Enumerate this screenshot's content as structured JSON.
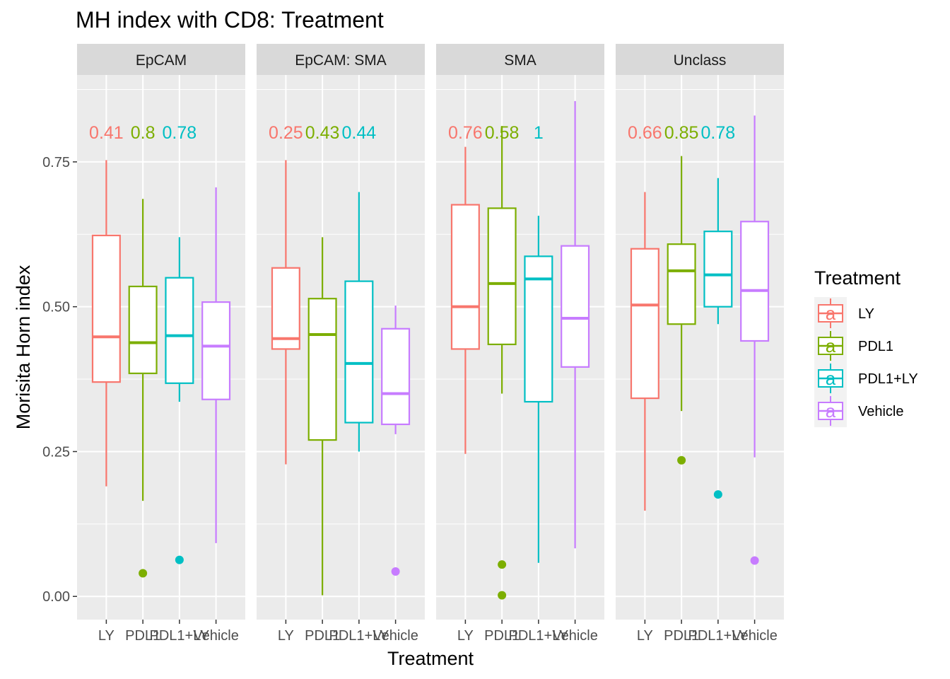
{
  "chart_data": {
    "type": "boxplot",
    "title": "MH index with CD8: Treatment",
    "xlabel": "Treatment",
    "ylabel": "Morisita Horn index",
    "ylim": [
      -0.04,
      0.9
    ],
    "yticks": [
      0.0,
      0.25,
      0.5,
      0.75
    ],
    "ytick_labels": [
      "0.00",
      "0.25",
      "0.50",
      "0.75"
    ],
    "grid": true,
    "legend_position": "right",
    "legend": {
      "title": "Treatment",
      "key_glyph": "a",
      "entries": [
        "LY",
        "PDL1",
        "PDL1+LY",
        "Vehicle"
      ]
    },
    "categories": [
      "LY",
      "PDL1",
      "PDL1+LY",
      "Vehicle"
    ],
    "colors": {
      "LY": "#F8766D",
      "PDL1": "#7CAE00",
      "PDL1+LY": "#00BFC4",
      "Vehicle": "#C77CFF"
    },
    "panel_bg": "#EBEBEB",
    "strip_bg": "#D9D9D9",
    "facets": [
      {
        "name": "EpCAM",
        "pvalue_labels": [
          "0.41",
          "0.8",
          "0.78"
        ],
        "boxes": [
          {
            "group": "LY",
            "whisker_low": 0.19,
            "q1": 0.37,
            "median": 0.448,
            "q3": 0.623,
            "whisker_high": 0.753,
            "outliers": []
          },
          {
            "group": "PDL1",
            "whisker_low": 0.165,
            "q1": 0.385,
            "median": 0.438,
            "q3": 0.535,
            "whisker_high": 0.686,
            "outliers": [
              0.04
            ]
          },
          {
            "group": "PDL1+LY",
            "whisker_low": 0.336,
            "q1": 0.368,
            "median": 0.45,
            "q3": 0.55,
            "whisker_high": 0.62,
            "outliers": [
              0.063
            ]
          },
          {
            "group": "Vehicle",
            "whisker_low": 0.092,
            "q1": 0.34,
            "median": 0.432,
            "q3": 0.508,
            "whisker_high": 0.706,
            "outliers": []
          }
        ]
      },
      {
        "name": "EpCAM: SMA",
        "pvalue_labels": [
          "0.25",
          "0.43",
          "0.44"
        ],
        "boxes": [
          {
            "group": "LY",
            "whisker_low": 0.228,
            "q1": 0.427,
            "median": 0.445,
            "q3": 0.567,
            "whisker_high": 0.753,
            "outliers": []
          },
          {
            "group": "PDL1",
            "whisker_low": 0.002,
            "q1": 0.27,
            "median": 0.452,
            "q3": 0.514,
            "whisker_high": 0.62,
            "outliers": []
          },
          {
            "group": "PDL1+LY",
            "whisker_low": 0.25,
            "q1": 0.3,
            "median": 0.402,
            "q3": 0.544,
            "whisker_high": 0.698,
            "outliers": []
          },
          {
            "group": "Vehicle",
            "whisker_low": 0.28,
            "q1": 0.297,
            "median": 0.35,
            "q3": 0.462,
            "whisker_high": 0.502,
            "outliers": [
              0.043
            ]
          }
        ]
      },
      {
        "name": "SMA",
        "pvalue_labels": [
          "0.76",
          "0.58",
          "1"
        ],
        "boxes": [
          {
            "group": "LY",
            "whisker_low": 0.246,
            "q1": 0.427,
            "median": 0.5,
            "q3": 0.676,
            "whisker_high": 0.776,
            "outliers": []
          },
          {
            "group": "PDL1",
            "whisker_low": 0.35,
            "q1": 0.435,
            "median": 0.54,
            "q3": 0.67,
            "whisker_high": 0.812,
            "outliers": [
              0.055,
              0.002
            ]
          },
          {
            "group": "PDL1+LY",
            "whisker_low": 0.058,
            "q1": 0.336,
            "median": 0.548,
            "q3": 0.587,
            "whisker_high": 0.657,
            "outliers": []
          },
          {
            "group": "Vehicle",
            "whisker_low": 0.083,
            "q1": 0.396,
            "median": 0.48,
            "q3": 0.605,
            "whisker_high": 0.855,
            "outliers": []
          }
        ]
      },
      {
        "name": "Unclass",
        "pvalue_labels": [
          "0.66",
          "0.85",
          "0.78"
        ],
        "boxes": [
          {
            "group": "LY",
            "whisker_low": 0.148,
            "q1": 0.342,
            "median": 0.503,
            "q3": 0.6,
            "whisker_high": 0.698,
            "outliers": []
          },
          {
            "group": "PDL1",
            "whisker_low": 0.32,
            "q1": 0.47,
            "median": 0.562,
            "q3": 0.608,
            "whisker_high": 0.76,
            "outliers": [
              0.235
            ]
          },
          {
            "group": "PDL1+LY",
            "whisker_low": 0.47,
            "q1": 0.5,
            "median": 0.555,
            "q3": 0.63,
            "whisker_high": 0.722,
            "outliers": [
              0.176
            ]
          },
          {
            "group": "Vehicle",
            "whisker_low": 0.24,
            "q1": 0.441,
            "median": 0.528,
            "q3": 0.647,
            "whisker_high": 0.83,
            "outliers": [
              0.062
            ]
          }
        ]
      }
    ]
  }
}
